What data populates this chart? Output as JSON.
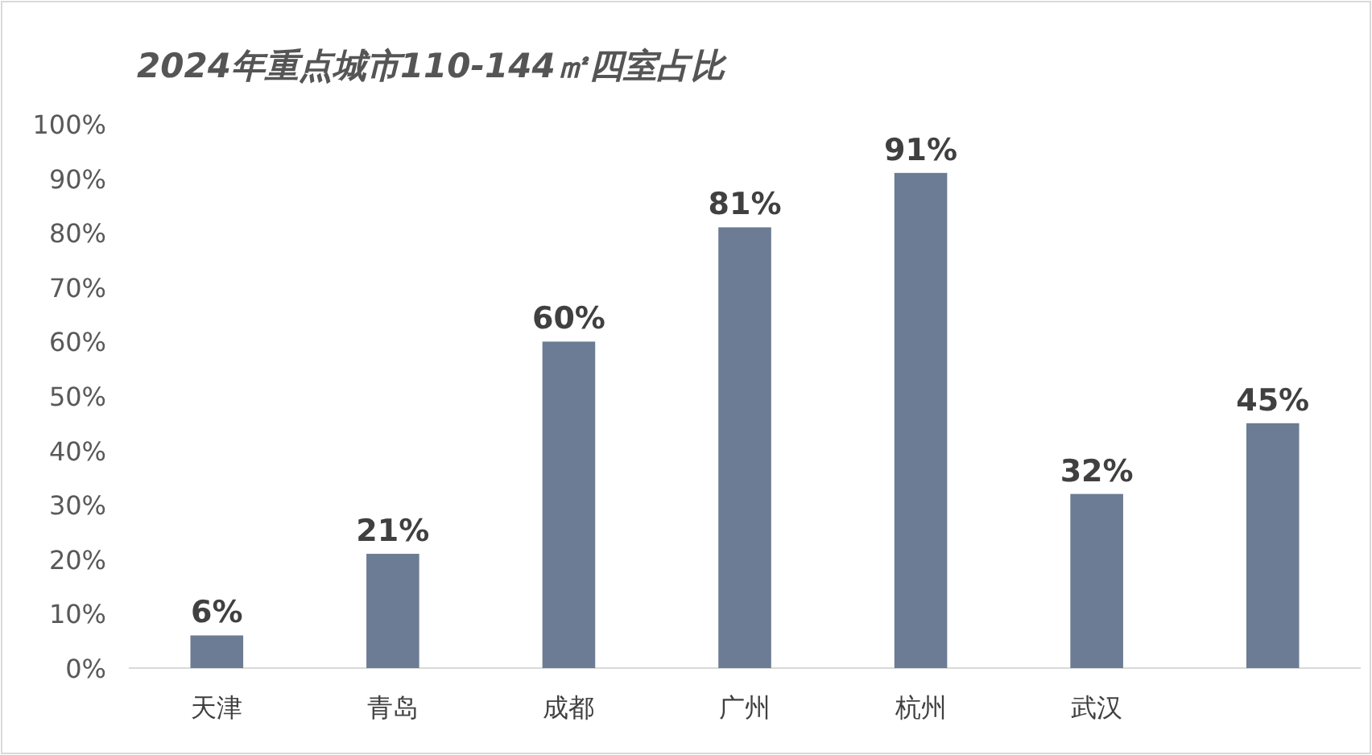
{
  "chart_data": {
    "type": "bar",
    "title": "2024年重点城市110-144㎡四室占比",
    "categories": [
      "天津",
      "青岛",
      "成都",
      "广州",
      "杭州",
      "武汉",
      null
    ],
    "values": [
      6,
      21,
      60,
      81,
      91,
      32,
      45
    ],
    "value_labels": [
      "6%",
      "21%",
      "60%",
      "81%",
      "91%",
      "32%",
      "45%"
    ],
    "color": "#6b7c94",
    "ylim": [
      0,
      100
    ],
    "yticks": [
      {
        "value": 0,
        "label": "0%"
      },
      {
        "value": 10,
        "label": "10%"
      },
      {
        "value": 20,
        "label": "20%"
      },
      {
        "value": 30,
        "label": "30%"
      },
      {
        "value": 40,
        "label": "40%"
      },
      {
        "value": 50,
        "label": "50%"
      },
      {
        "value": 60,
        "label": "60%"
      },
      {
        "value": 70,
        "label": "70%"
      },
      {
        "value": 80,
        "label": "80%"
      },
      {
        "value": 90,
        "label": "90%"
      },
      {
        "value": 100,
        "label": "100%"
      }
    ]
  }
}
